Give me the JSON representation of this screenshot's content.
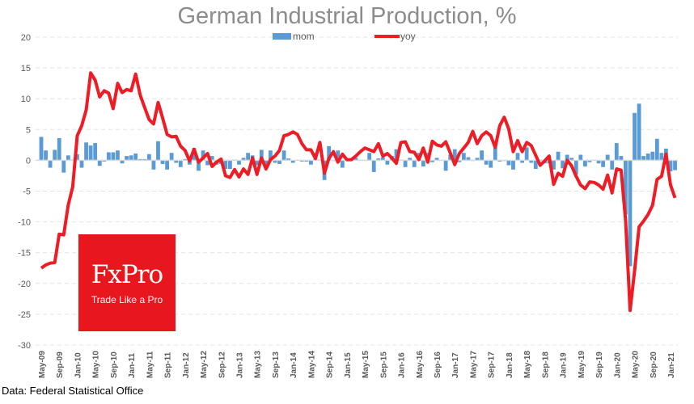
{
  "chart_data": {
    "type": "bar+line",
    "title": "German Industrial Production, %",
    "xlabel": "",
    "ylabel": "",
    "ylim": [
      -30,
      20
    ],
    "yticks": [
      20,
      15,
      10,
      5,
      0,
      -5,
      -10,
      -15,
      -20,
      -25,
      -30
    ],
    "grid": true,
    "legend_position": "top-center",
    "x_start": "May-09",
    "x_end": "Feb-21",
    "xtick_labels": [
      "May-09",
      "Sep-09",
      "Jan-10",
      "May-10",
      "Sep-10",
      "Jan-11",
      "May-11",
      "Sep-11",
      "Jan-12",
      "May-12",
      "Sep-12",
      "Jan-13",
      "May-13",
      "Sep-13",
      "Jan-14",
      "May-14",
      "Sep-14",
      "Jan-15",
      "May-15",
      "Sep-15",
      "Jan-16",
      "May-16",
      "Sep-16",
      "Jan-17",
      "May-17",
      "Sep-17",
      "Jan-18",
      "May-18",
      "Sep-18",
      "Jan-19",
      "May-19",
      "Sep-19",
      "Jan-20",
      "May-20",
      "Sep-20",
      "Jan-21"
    ],
    "series": [
      {
        "name": "mom",
        "type": "bar",
        "color": "#5b9bd5",
        "values": [
          3.8,
          1.6,
          -1.2,
          1.7,
          3.6,
          -2.0,
          0.8,
          0.1,
          1.0,
          -1.2,
          2.9,
          2.4,
          2.8,
          -0.9,
          -0.2,
          1.3,
          1.3,
          1.6,
          -0.5,
          0.7,
          0.8,
          1.1,
          0.2,
          0.2,
          1.0,
          -1.5,
          3.1,
          -0.6,
          -1.5,
          1.2,
          -0.4,
          -1.1,
          0.2,
          -0.7,
          2.0,
          -1.7,
          1.6,
          -0.8,
          0.7,
          -0.7,
          -0.6,
          -1.4,
          -1.4,
          0.1,
          -0.7,
          0.4,
          1.2,
          0.8,
          -0.8,
          1.7,
          -1.0,
          1.6,
          -0.4,
          -0.6,
          1.6,
          0.3,
          -0.4,
          0,
          -0.2,
          -0.2,
          -0.7,
          1.2,
          0.1,
          -3.2,
          2.3,
          -0.1,
          1.6,
          -1.2,
          0.1,
          0.3,
          0.4,
          0,
          0,
          1.2,
          -1.9,
          0.3,
          0.5,
          -0.7,
          0.7,
          1.8,
          0.1,
          -1.1,
          0.4,
          -1.1,
          1.2,
          -1.0,
          1.2,
          -0.3,
          0.4,
          0,
          -1.7,
          0.9,
          1.8,
          -0.3,
          1.2,
          0.5,
          -0.1,
          0.4,
          1.6,
          -0.7,
          -1.2,
          3.1,
          -0.2,
          -0.1,
          -0.8,
          -1.5,
          1.2,
          -0.4,
          2.1,
          -0.4,
          -1.4,
          0.1,
          -0.5,
          -0.5,
          -1.5,
          1.4,
          -1.3,
          0.9,
          0.4,
          -2.3,
          0.9,
          -1.0,
          -0.3,
          0,
          -0.5,
          -1.1,
          0.9,
          -1.5,
          2.8,
          0.7,
          -8.8,
          -17.2,
          7.7,
          9.2,
          0.7,
          1.1,
          1.4,
          3.5,
          1.2,
          1.9,
          -1.8,
          -1.6
        ]
      },
      {
        "name": "yoy",
        "type": "line",
        "color": "#ee1c25",
        "values": [
          -17.5,
          -17,
          -16.7,
          -16.6,
          -12,
          -12.1,
          -7.3,
          -4.3,
          4.0,
          5.6,
          8.2,
          14.2,
          13.0,
          10.3,
          11.3,
          10.9,
          8.4,
          12.5,
          11.0,
          11.5,
          11.3,
          14.0,
          10.6,
          8.6,
          6.6,
          5.9,
          9.4,
          6.9,
          4.2,
          3.8,
          3.9,
          2.3,
          1.6,
          -0.1,
          1.8,
          -0.3,
          0.4,
          1.1,
          -1.0,
          -0.3,
          0.2,
          -2.5,
          -2.8,
          -1.5,
          -2.7,
          -1.4,
          -2.3,
          0.4,
          -2.3,
          0.4,
          -1.4,
          0.1,
          0.7,
          1.6,
          4.0,
          4.2,
          4.6,
          4.2,
          2.7,
          1.7,
          1.7,
          0.3,
          2.9,
          -2.1,
          0.3,
          1.4,
          -0.3,
          1.0,
          0.1,
          0.1,
          0.7,
          1.4,
          2.0,
          1.7,
          1.4,
          2.7,
          0.7,
          1.1,
          0.4,
          -0.5,
          2.9,
          3.0,
          1.4,
          1.3,
          0.1,
          2.0,
          -0.3,
          3.1,
          2.5,
          2.3,
          3.0,
          1.2,
          -0.7,
          1.1,
          2.0,
          2.9,
          4.7,
          2.7,
          4.0,
          4.6,
          4.0,
          2.1,
          5.6,
          7.0,
          5.1,
          1.4,
          3.2,
          1.4,
          2.9,
          2.4,
          0.8,
          -0.8,
          -0.1,
          0.7,
          -3.9,
          -2.1,
          -2.6,
          0,
          -0.9,
          -2.6,
          -4.0,
          -4.6,
          -3.5,
          -3.6,
          -4.0,
          -4.7,
          -2.4,
          -5.3,
          -1.4,
          -1.6,
          -9.7,
          -24.4,
          -18.0,
          -10.8,
          -9.9,
          -8.8,
          -7.3,
          -3.1,
          -2.6,
          1.0,
          -4.0,
          -6.1
        ]
      }
    ],
    "source": "Data: Federal Statistical Office"
  },
  "logo": {
    "brand": "FxPro",
    "tagline": "Trade Like a Pro"
  }
}
